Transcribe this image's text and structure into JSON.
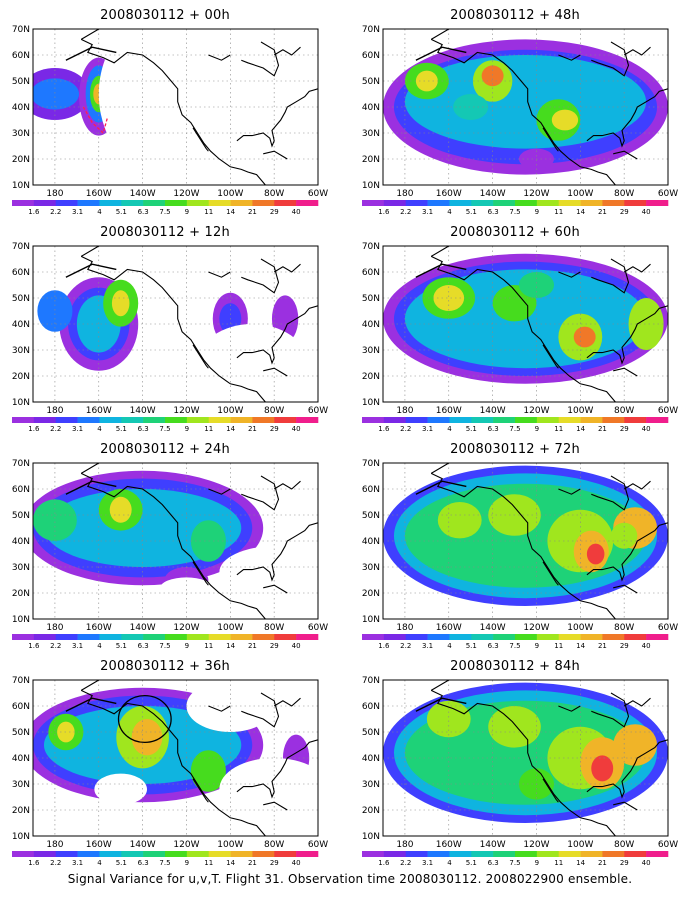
{
  "panels": [
    {
      "title": "2008030112 + 00h",
      "lead": "00h"
    },
    {
      "title": "2008030112 + 48h",
      "lead": "48h"
    },
    {
      "title": "2008030112 + 12h",
      "lead": "12h"
    },
    {
      "title": "2008030112 + 60h",
      "lead": "60h"
    },
    {
      "title": "2008030112 + 24h",
      "lead": "24h"
    },
    {
      "title": "2008030112 + 72h",
      "lead": "72h"
    },
    {
      "title": "2008030112 + 36h",
      "lead": "36h"
    },
    {
      "title": "2008030112 + 84h",
      "lead": "84h"
    }
  ],
  "axes": {
    "lat_labels": [
      "70N",
      "60N",
      "50N",
      "40N",
      "30N",
      "20N",
      "10N"
    ],
    "lon_labels": [
      "180",
      "160W",
      "140W",
      "120W",
      "100W",
      "80W",
      "60W"
    ]
  },
  "colorbar": {
    "labels": [
      "1.6",
      "2.2",
      "3.1",
      "4",
      "5.1",
      "6.3",
      "7.5",
      "9",
      "11",
      "14",
      "21",
      "29",
      "40"
    ],
    "colors": [
      "#9b30e0",
      "#7a28e6",
      "#3f3fff",
      "#1e78ff",
      "#0fb4e0",
      "#14c8b4",
      "#1ed278",
      "#46dc1e",
      "#a0e61e",
      "#e6dc28",
      "#f0b428",
      "#f07828",
      "#f03c3c",
      "#f01e8c"
    ]
  },
  "caption": "Signal Variance for u,v,T. Flight 31. Observation time 2008030112. 2008022900 ensemble."
}
